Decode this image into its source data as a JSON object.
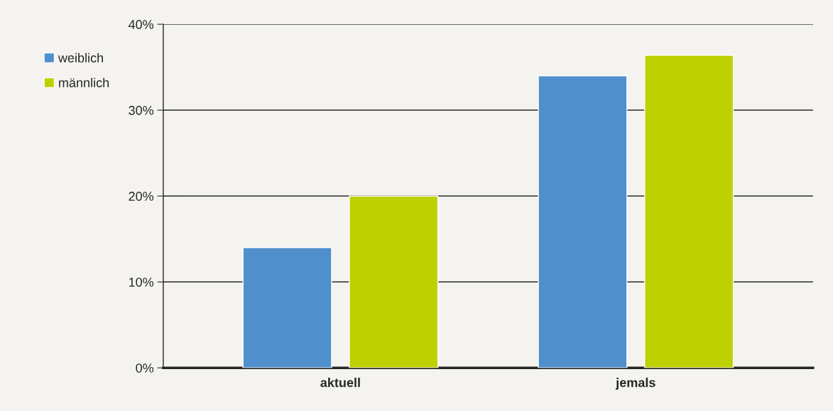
{
  "chart_data": {
    "type": "bar",
    "categories": [
      "aktuell",
      "jemals"
    ],
    "series": [
      {
        "name": "weiblich",
        "color": "#4f8fcc",
        "values": [
          14,
          34
        ]
      },
      {
        "name": "männlich",
        "color": "#bed000",
        "values": [
          20,
          36.4
        ]
      }
    ],
    "ylim": [
      0,
      40
    ],
    "yticks": [
      {
        "value": 0,
        "label": "0%"
      },
      {
        "value": 10,
        "label": "10%"
      },
      {
        "value": 20,
        "label": "20%"
      },
      {
        "value": 30,
        "label": "30%"
      },
      {
        "value": 40,
        "label": "40%"
      }
    ],
    "grid": "y",
    "legend": "top left"
  }
}
